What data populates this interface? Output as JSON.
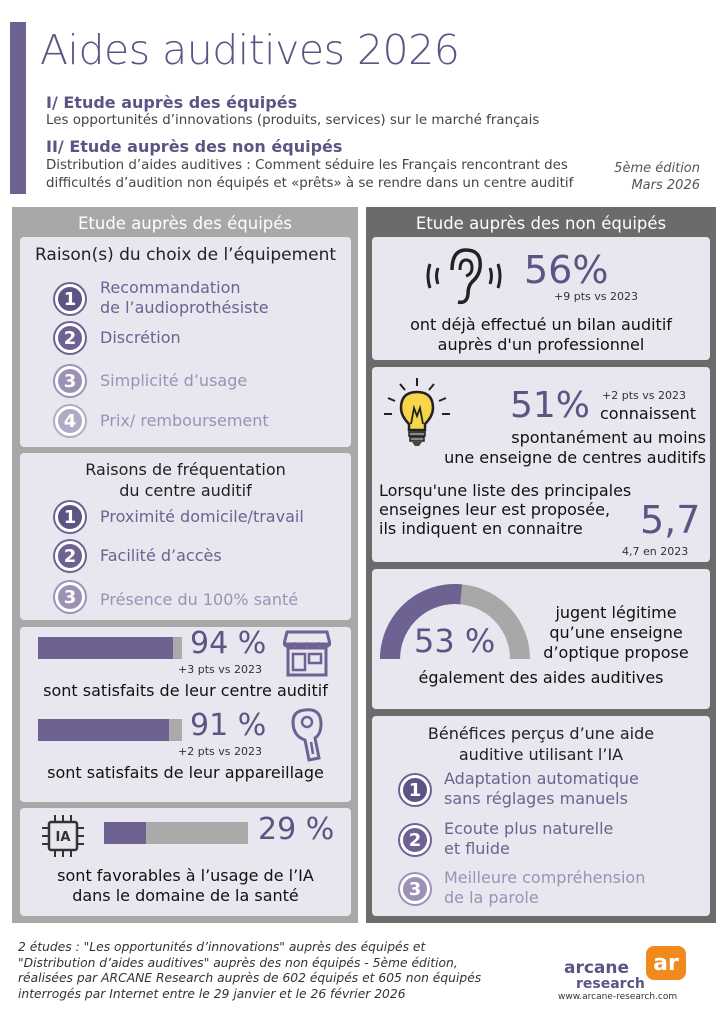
{
  "header": {
    "title": "Aides auditives 2026",
    "section1_title": "I/ Etude auprès des équipés",
    "section1_desc": "Les opportunités d’innovations (produits, services) sur le marché français",
    "section2_title": "II/ Etude auprès des non équipés",
    "section2_desc_line1": "Distribution d’aides auditives : Comment séduire les Français rencontrant des",
    "section2_desc_line2": "difficultés d’audition non équipés et «prêts» à se rendre dans un centre auditif",
    "edition_line1": "5ème édition",
    "edition_line2": "Mars 2026"
  },
  "left": {
    "header": "Etude auprès des équipés",
    "choice": {
      "title": "Raison(s) du choix de l’équipement",
      "items": [
        {
          "num": "1",
          "line1": "Recommandation",
          "line2": "de l’audioprothésiste"
        },
        {
          "num": "2",
          "line1": "Discrétion"
        },
        {
          "num": "3",
          "line1": "Simplicité d’usage"
        },
        {
          "num": "4",
          "line1": "Prix/ remboursement"
        }
      ]
    },
    "frequentation": {
      "title_line1": "Raisons de fréquentation",
      "title_line2": "du centre auditif",
      "items": [
        {
          "num": "1",
          "label": "Proximité domicile/travail"
        },
        {
          "num": "2",
          "label": "Facilité d’accès"
        },
        {
          "num": "3",
          "label": "Présence du 100% santé"
        }
      ]
    },
    "satisfaction": [
      {
        "value": "94 %",
        "fraction": 0.94,
        "delta": "+3 pts vs 2023",
        "label": "sont satisfaits de leur centre auditif",
        "icon": "store-icon"
      },
      {
        "value": "91 %",
        "fraction": 0.91,
        "delta": "+2 pts vs 2023",
        "label": "sont satisfaits de leur appareillage",
        "icon": "hearing-aid-icon"
      }
    ],
    "ia": {
      "chip_label": "IA",
      "value": "29 %",
      "fraction": 0.29,
      "label_line1": "sont favorables à l’usage de l’IA",
      "label_line2": "dans le domaine de la santé"
    }
  },
  "right": {
    "header": "Etude auprès des non équipés",
    "bilan": {
      "value": "56%",
      "delta": "+9 pts vs 2023",
      "label_line1": "ont déjà effectué un bilan auditif",
      "label_line2": "auprès d'un professionnel"
    },
    "enseignes": {
      "delta": "+2 pts vs 2023",
      "value": "51%",
      "label_line1": "connaissent",
      "label_line2": "spontanément au moins",
      "label_line3": "une enseigne de centres auditifs",
      "list_line1": "Lorsqu'une liste des principales",
      "list_line2": "enseignes leur est proposée,",
      "list_line3": "ils indiquent en connaitre",
      "list_value": "5,7",
      "list_prev": "4,7 en 2023"
    },
    "optique": {
      "value": "53 %",
      "fraction": 0.53,
      "label_line1": "jugent légitime",
      "label_line2": "qu’une enseigne",
      "label_line3": "d’optique propose",
      "label_line4": "également des aides auditives"
    },
    "benefices": {
      "title_line1": "Bénéfices perçus d’une aide",
      "title_line2": "auditive utilisant l’IA",
      "items": [
        {
          "num": "1",
          "line1": "Adaptation automatique",
          "line2": "sans réglages manuels"
        },
        {
          "num": "2",
          "line1": "Ecoute plus naturelle",
          "line2": "et fluide"
        },
        {
          "num": "3",
          "line1": "Meilleure compréhension",
          "line2": "de la parole"
        }
      ]
    }
  },
  "footer": {
    "line1": "2 études : \"Les opportunités d’innovations\" auprès des équipés et",
    "line2": "\"Distribution d’aides auditives\" auprès des non équipés - 5ème édition,",
    "line3": "réalisées par ARCANE Research auprès de 602 équipés et 605 non équipés",
    "line4": "interrogés par Internet entre le 29 janvier et le 26 février 2026",
    "logo_word1": "arcane",
    "logo_mark": "ar",
    "logo_word2": "research",
    "website": "www.arcane-research.com"
  },
  "colors": {
    "accent": "#6d6292",
    "panel_dark": "#6b6b6b",
    "panel_light": "#a8a8a8",
    "card": "#e8e6ee",
    "logo_orange": "#f08a1c"
  }
}
